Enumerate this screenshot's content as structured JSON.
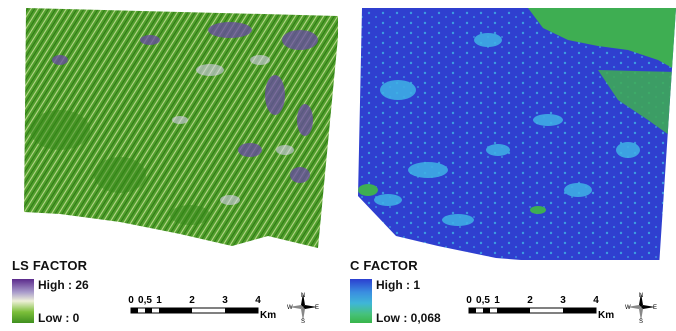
{
  "maps": [
    {
      "legend_title": "LS FACTOR",
      "high_label": "High : 26",
      "low_label": "Low : 0",
      "ramp_colors": [
        "#5b2a8c",
        "#a99ccb",
        "#eef0d8",
        "#7cbf3a",
        "#3f8f1f"
      ],
      "base_color": "#4f9e2a",
      "accent_color": "#6a4ba6",
      "scale_ticks": [
        "0",
        "0,5",
        "1",
        "2",
        "3",
        "4"
      ],
      "scale_unit": "Km",
      "compass": {
        "n": "N",
        "s": "S",
        "e": "E",
        "w": "W"
      }
    },
    {
      "legend_title": "C FACTOR",
      "high_label": "High : 1",
      "low_label": "Low : 0,068",
      "ramp_colors": [
        "#2b3fd0",
        "#3a8ee0",
        "#3fb6d8",
        "#46c27a",
        "#39b54a"
      ],
      "base_color": "#2f3fcf",
      "accent_color": "#3fb3e6",
      "scale_ticks": [
        "0",
        "0,5",
        "1",
        "2",
        "3",
        "4"
      ],
      "scale_unit": "Km",
      "compass": {
        "n": "N",
        "s": "S",
        "e": "E",
        "w": "W"
      }
    }
  ]
}
